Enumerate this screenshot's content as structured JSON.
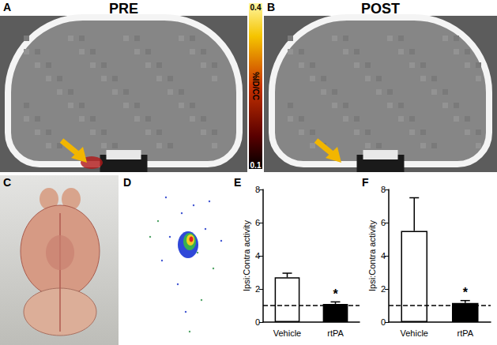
{
  "panels": [
    {
      "label": "A",
      "title": "PRE"
    },
    {
      "label": "B",
      "title": "POST"
    },
    {
      "label": "C"
    },
    {
      "label": "D"
    }
  ],
  "colorbar": {
    "label": "%ID/CC",
    "range": [
      0.1,
      0.4
    ],
    "ticks": [
      0.1,
      0.4
    ]
  },
  "chart_data": [
    {
      "type": "bar",
      "title": "E",
      "categories": [
        "Vehicle",
        "rtPA"
      ],
      "values": [
        2.7,
        1.1
      ],
      "errors": [
        0.25,
        0.12
      ],
      "colors": [
        "#ffffff",
        "#000000"
      ],
      "ylabel": "Ipsi:Contra activity",
      "ylim": [
        0,
        8
      ],
      "yticks": [
        0,
        2,
        4,
        6,
        8
      ],
      "reference_line": 1,
      "annotations": [
        {
          "category": "rtPA",
          "text": "*"
        }
      ],
      "grid": false
    },
    {
      "type": "bar",
      "title": "F",
      "categories": [
        "Vehicle",
        "rtPA"
      ],
      "values": [
        5.5,
        1.15
      ],
      "errors": [
        2.0,
        0.15
      ],
      "colors": [
        "#ffffff",
        "#000000"
      ],
      "ylabel": "Ipsi:Contra activity",
      "ylim": [
        0,
        8
      ],
      "yticks": [
        0,
        2,
        4,
        6,
        8
      ],
      "reference_line": 1,
      "annotations": [
        {
          "category": "rtPA",
          "text": "*"
        }
      ],
      "grid": false
    }
  ]
}
